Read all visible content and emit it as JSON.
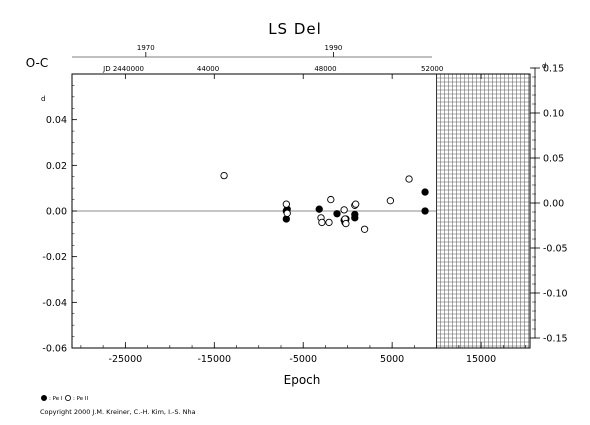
{
  "chart_data": {
    "type": "scatter",
    "title": "LS Del",
    "xlabel": "Epoch",
    "ylabel": "O-C",
    "xlim": [
      -31000,
      20500
    ],
    "ylim": [
      -0.06,
      0.06
    ],
    "right_ylim": [
      -0.15,
      0.15
    ],
    "x_ticks": [
      -25000,
      -15000,
      -5000,
      5000,
      15000
    ],
    "x_tick_labels": [
      "-25000",
      "-15000",
      "-5000",
      "5000",
      "15000"
    ],
    "y_ticks": [
      -0.06,
      -0.04,
      -0.02,
      0.0,
      0.02,
      0.04
    ],
    "y_tick_labels": [
      "-0.06",
      "-0.04",
      "-0.02",
      "0.00",
      "0.02",
      "0.04"
    ],
    "right_ticks": [
      -0.15,
      -0.1,
      -0.05,
      0.0,
      0.05,
      0.1,
      0.15
    ],
    "right_tick_labels": [
      "-0.15",
      "-0.10",
      "-0.05",
      "0.00",
      "0.05",
      "0.10",
      "0.15"
    ],
    "right_unit_mark": "d",
    "left_unit_mark": "d",
    "top_years": [
      {
        "label": "1970",
        "epoch": -22700
      },
      {
        "label": "1990",
        "epoch": -1600
      }
    ],
    "jd_labels": [
      {
        "label": "JD 2440000",
        "epoch": -25200
      },
      {
        "label": "44000",
        "epoch": -15700
      },
      {
        "label": "48000",
        "epoch": -2500
      },
      {
        "label": "52000",
        "epoch": 9500
      }
    ],
    "hatched_region": [
      10000,
      20500
    ],
    "zero_line": 0.0,
    "legend": [
      {
        "label": ": Pe I",
        "marker": "filled"
      },
      {
        "label": ": Pe II",
        "marker": "open"
      }
    ],
    "series": [
      {
        "name": "Pe I",
        "marker": "filled",
        "points": [
          [
            -6900,
            0.0
          ],
          [
            -6800,
            0.0008
          ],
          [
            -6900,
            -0.0035
          ],
          [
            -3200,
            0.0008
          ],
          [
            -1200,
            -0.0012
          ],
          [
            -400,
            -0.004
          ],
          [
            -300,
            -0.005
          ],
          [
            -200,
            -0.0035
          ],
          [
            800,
            -0.0015
          ],
          [
            800,
            -0.003
          ],
          [
            8700,
            0.0083
          ],
          [
            8700,
            0.0
          ]
        ]
      },
      {
        "name": "Pe II",
        "marker": "open",
        "points": [
          [
            -13900,
            0.0155
          ],
          [
            -6900,
            0.003
          ],
          [
            -6800,
            -0.001
          ],
          [
            -3000,
            -0.003
          ],
          [
            -2900,
            -0.005
          ],
          [
            -2100,
            -0.005
          ],
          [
            -1900,
            0.005
          ],
          [
            -400,
            0.0005
          ],
          [
            -300,
            -0.0035
          ],
          [
            -200,
            -0.0055
          ],
          [
            800,
            0.0025
          ],
          [
            900,
            0.003
          ],
          [
            1900,
            -0.008
          ],
          [
            4800,
            0.0045
          ],
          [
            6900,
            0.014
          ]
        ]
      }
    ]
  },
  "copyright": "Copyright 2000 J.M. Kreiner, C.-H. Kim, I.-S. Nha"
}
